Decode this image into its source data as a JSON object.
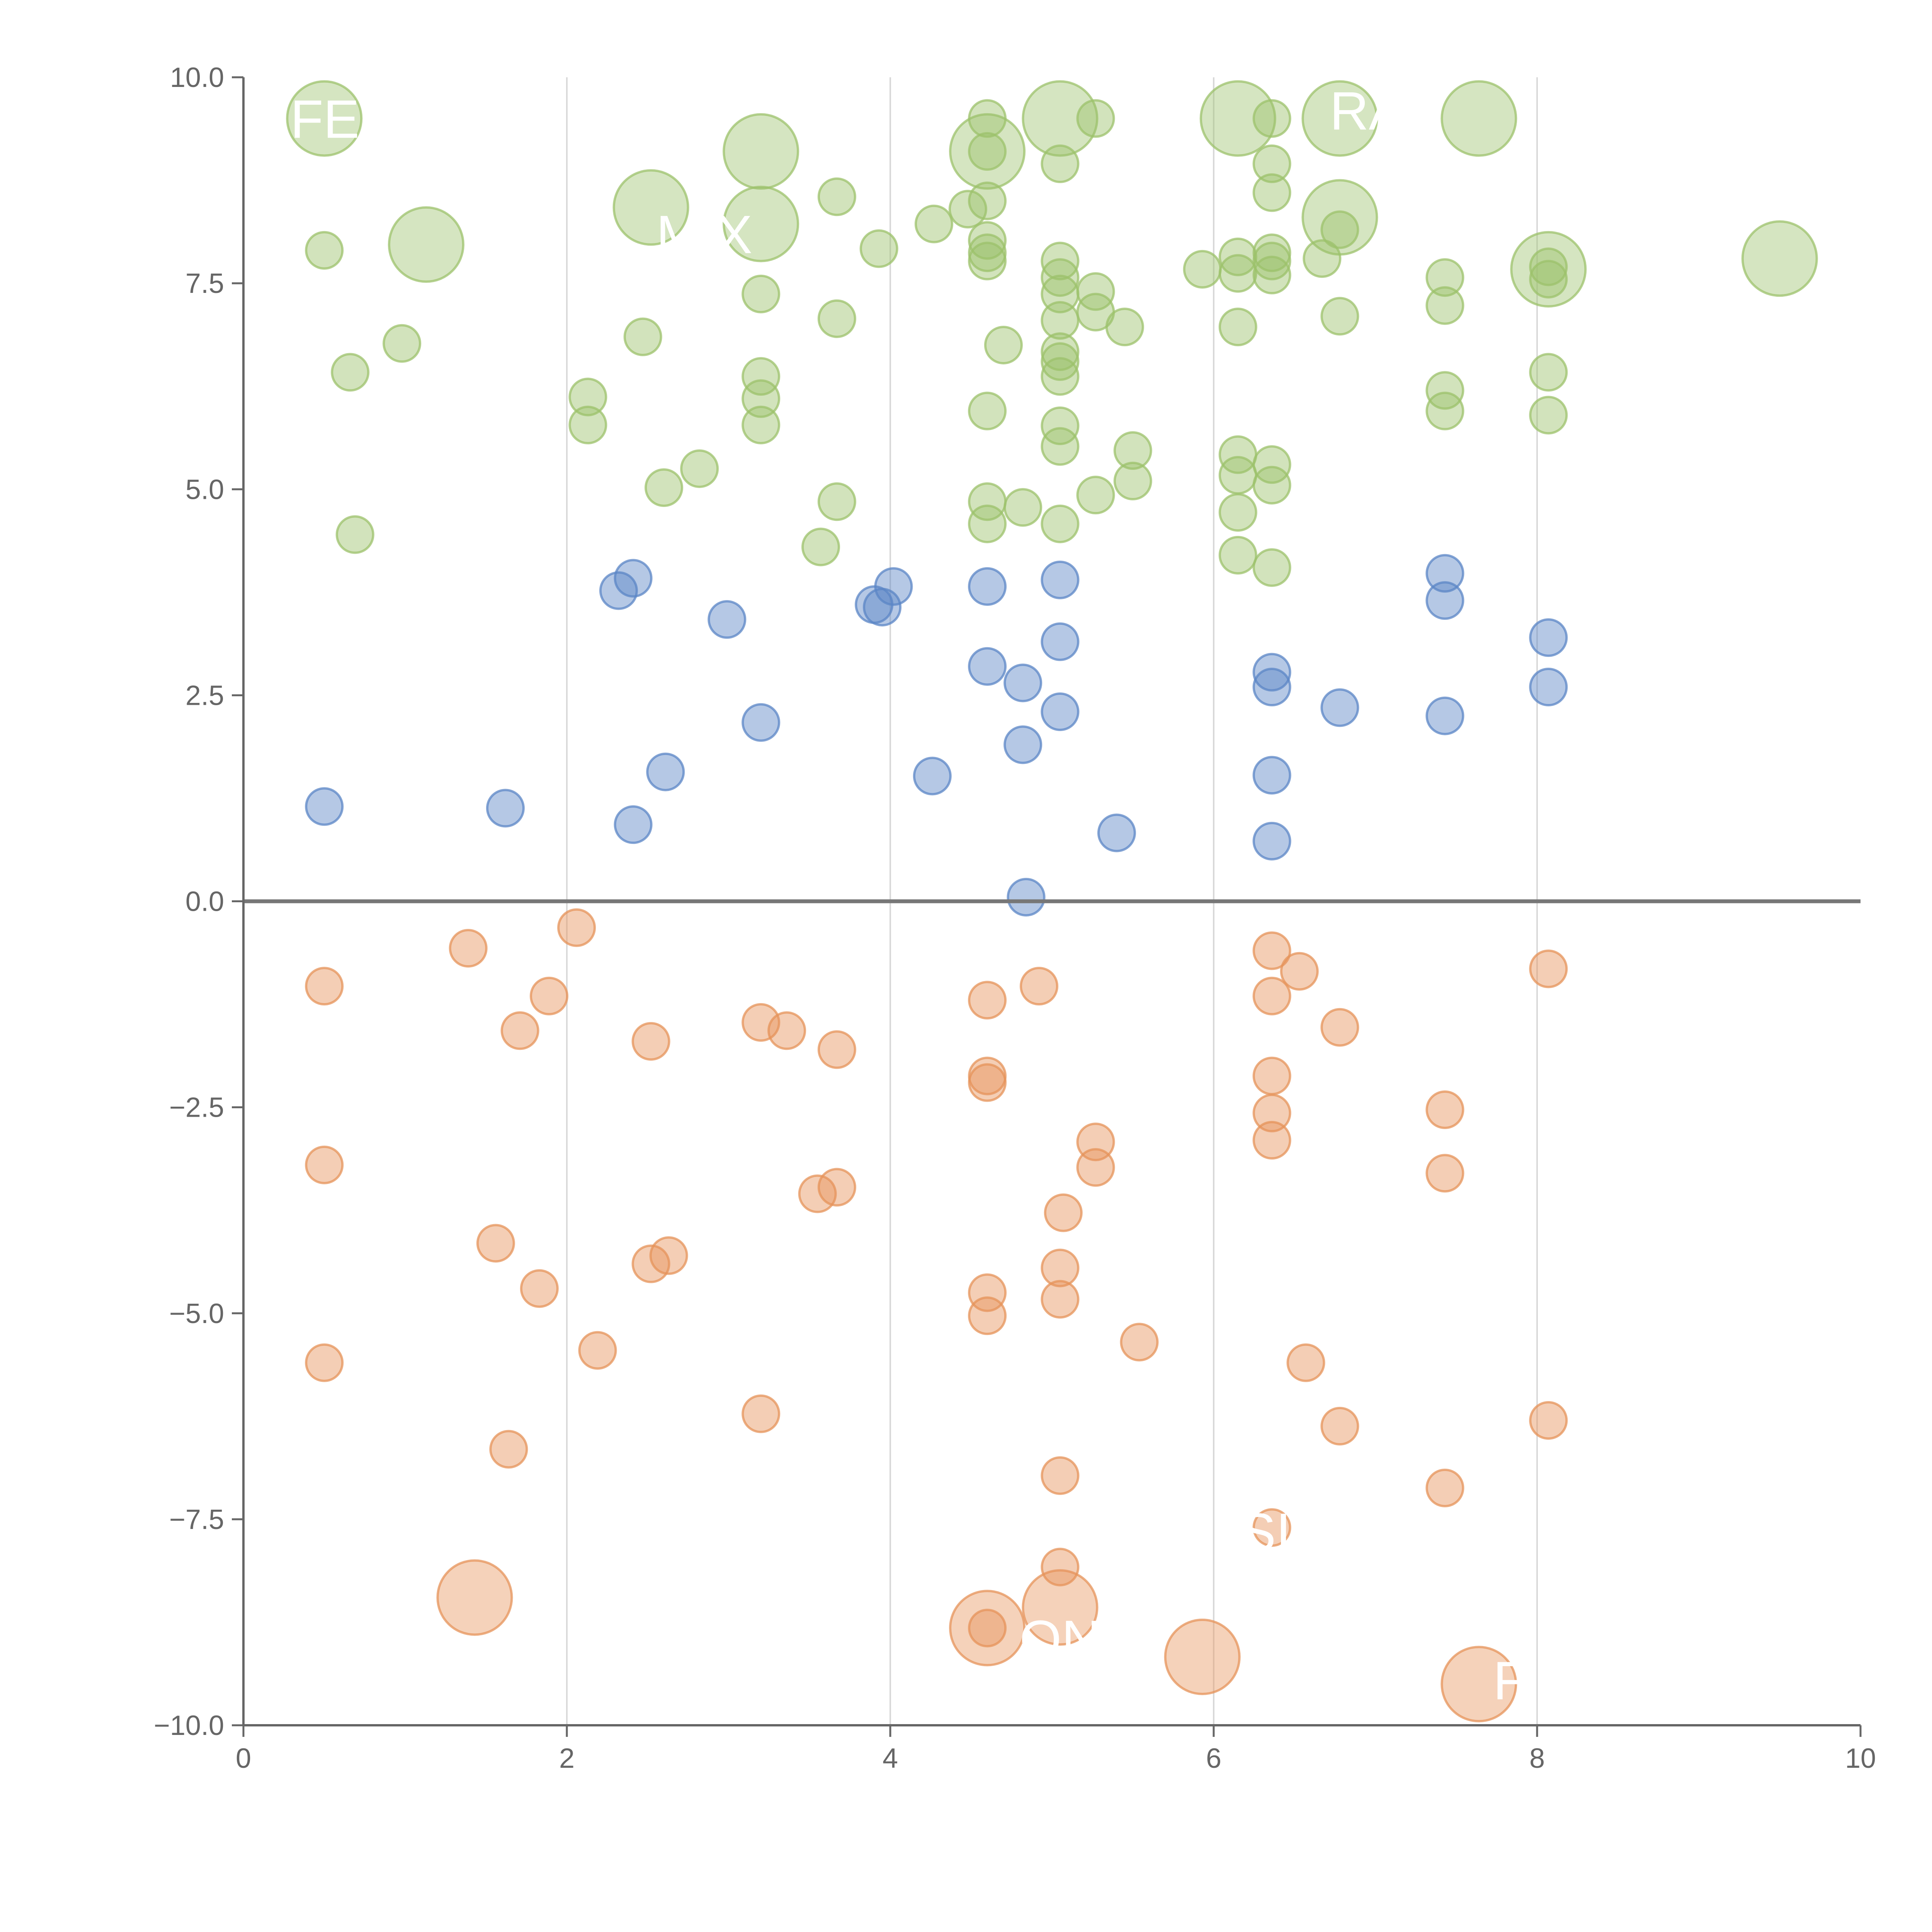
{
  "chart_data": {
    "type": "scatter",
    "title": "",
    "xlabel": "",
    "ylabel": "",
    "xlim": [
      0,
      10
    ],
    "ylim": [
      -10,
      10
    ],
    "grid": "vertical",
    "legend": "none",
    "x_ticks": [
      0,
      2,
      4,
      6,
      8,
      10
    ],
    "x_tick_labels": [
      "0",
      "2",
      "4",
      "6",
      "8",
      "10"
    ],
    "y_ticks": [
      10,
      7.5,
      5,
      2.5,
      0,
      -2.5,
      -5,
      -7.5,
      -10
    ],
    "y_tick_labels": [
      "10.0",
      "7.5",
      "5.0",
      "2.5",
      "0.0",
      "−2.5",
      "−5.0",
      "−7.5",
      "−10.0"
    ],
    "reference_line": {
      "y": 0,
      "color": "#777777"
    },
    "colors": {
      "positive_high": "#9cc26b",
      "positive_low": "#5b86c5",
      "negative": "#e6935a"
    },
    "series": [
      {
        "name": "positive_high",
        "color": "#9cc26b",
        "points": [
          [
            0.5,
            9.5,
            "big"
          ],
          [
            1.13,
            7.97,
            "big"
          ],
          [
            2.52,
            8.42,
            "big"
          ],
          [
            3.2,
            9.1,
            "big"
          ],
          [
            3.2,
            8.22,
            "big"
          ],
          [
            4.6,
            9.1,
            "big"
          ],
          [
            5.05,
            9.5,
            "big"
          ],
          [
            6.15,
            9.5,
            "big"
          ],
          [
            6.78,
            9.5,
            "big"
          ],
          [
            6.78,
            8.3,
            "big"
          ],
          [
            7.64,
            9.5,
            "big"
          ],
          [
            8.07,
            7.67,
            "big"
          ],
          [
            9.5,
            7.8,
            "big"
          ],
          [
            0.5,
            7.9
          ],
          [
            0.66,
            6.42
          ],
          [
            0.98,
            6.77
          ],
          [
            0.69,
            4.45
          ],
          [
            2.13,
            6.12
          ],
          [
            2.13,
            5.78
          ],
          [
            2.47,
            6.85
          ],
          [
            2.6,
            5.02
          ],
          [
            2.82,
            5.25
          ],
          [
            3.2,
            7.37
          ],
          [
            3.2,
            6.37
          ],
          [
            3.2,
            6.1
          ],
          [
            3.2,
            5.78
          ],
          [
            3.57,
            4.3
          ],
          [
            3.67,
            8.55
          ],
          [
            3.67,
            7.07
          ],
          [
            3.67,
            4.85
          ],
          [
            3.93,
            7.92
          ],
          [
            4.27,
            8.22
          ],
          [
            4.48,
            8.4
          ],
          [
            4.6,
            9.5
          ],
          [
            4.6,
            9.1
          ],
          [
            4.6,
            8.5
          ],
          [
            4.6,
            8.02
          ],
          [
            4.6,
            7.87
          ],
          [
            4.6,
            7.77
          ],
          [
            4.6,
            5.95
          ],
          [
            4.6,
            4.85
          ],
          [
            4.6,
            4.58
          ],
          [
            4.7,
            6.75
          ],
          [
            4.82,
            4.78
          ],
          [
            5.05,
            8.95
          ],
          [
            5.05,
            7.77
          ],
          [
            5.05,
            7.57
          ],
          [
            5.05,
            7.37
          ],
          [
            5.05,
            7.05
          ],
          [
            5.05,
            6.67
          ],
          [
            5.05,
            6.55
          ],
          [
            5.05,
            6.37
          ],
          [
            5.05,
            5.77
          ],
          [
            5.05,
            5.52
          ],
          [
            5.05,
            4.58
          ],
          [
            5.27,
            9.5
          ],
          [
            5.27,
            7.4
          ],
          [
            5.27,
            7.15
          ],
          [
            5.27,
            4.93
          ],
          [
            5.45,
            6.97
          ],
          [
            5.5,
            5.47
          ],
          [
            5.5,
            5.1
          ],
          [
            5.93,
            7.67
          ],
          [
            6.15,
            7.82
          ],
          [
            6.15,
            7.62
          ],
          [
            6.15,
            6.97
          ],
          [
            6.15,
            5.42
          ],
          [
            6.15,
            5.17
          ],
          [
            6.15,
            4.72
          ],
          [
            6.15,
            4.2
          ],
          [
            6.36,
            9.5
          ],
          [
            6.36,
            8.95
          ],
          [
            6.36,
            8.6
          ],
          [
            6.36,
            7.87
          ],
          [
            6.36,
            7.77
          ],
          [
            6.36,
            7.6
          ],
          [
            6.36,
            5.3
          ],
          [
            6.36,
            5.05
          ],
          [
            6.36,
            4.05
          ],
          [
            6.67,
            7.8
          ],
          [
            6.78,
            8.15
          ],
          [
            6.78,
            7.1
          ],
          [
            7.43,
            7.57
          ],
          [
            7.43,
            7.23
          ],
          [
            7.43,
            6.2
          ],
          [
            7.43,
            5.95
          ],
          [
            8.07,
            7.7
          ],
          [
            8.07,
            7.55
          ],
          [
            8.07,
            6.42
          ],
          [
            8.07,
            5.9
          ]
        ]
      },
      {
        "name": "positive_low",
        "color": "#5b86c5",
        "points": [
          [
            0.5,
            1.15
          ],
          [
            1.62,
            1.13
          ],
          [
            2.32,
            3.77
          ],
          [
            2.41,
            3.92
          ],
          [
            2.41,
            0.93
          ],
          [
            2.61,
            1.57
          ],
          [
            2.99,
            3.42
          ],
          [
            3.2,
            2.17
          ],
          [
            3.9,
            3.6
          ],
          [
            3.95,
            3.57
          ],
          [
            4.02,
            3.82
          ],
          [
            4.26,
            1.52
          ],
          [
            4.6,
            3.82
          ],
          [
            4.6,
            2.85
          ],
          [
            4.82,
            2.65
          ],
          [
            4.82,
            1.9
          ],
          [
            4.84,
            0.05
          ],
          [
            5.05,
            3.9
          ],
          [
            5.05,
            3.15
          ],
          [
            5.05,
            2.3
          ],
          [
            5.4,
            0.83
          ],
          [
            6.36,
            2.78
          ],
          [
            6.36,
            2.6
          ],
          [
            6.36,
            1.53
          ],
          [
            6.36,
            0.73
          ],
          [
            6.78,
            2.35
          ],
          [
            7.43,
            3.98
          ],
          [
            7.43,
            3.65
          ],
          [
            7.43,
            2.25
          ],
          [
            8.07,
            3.2
          ],
          [
            8.07,
            2.6
          ]
        ]
      },
      {
        "name": "negative",
        "color": "#e6935a",
        "points": [
          [
            1.43,
            -8.45,
            "big"
          ],
          [
            4.6,
            -8.82,
            "big"
          ],
          [
            5.05,
            -8.57,
            "big"
          ],
          [
            5.93,
            -9.17,
            "big"
          ],
          [
            7.64,
            -9.5,
            "big"
          ],
          [
            0.5,
            -1.03
          ],
          [
            0.5,
            -3.2
          ],
          [
            0.5,
            -5.6
          ],
          [
            1.39,
            -0.57
          ],
          [
            1.56,
            -4.15
          ],
          [
            1.64,
            -6.65
          ],
          [
            1.71,
            -1.57
          ],
          [
            1.83,
            -4.7
          ],
          [
            1.89,
            -1.15
          ],
          [
            2.06,
            -0.32
          ],
          [
            2.19,
            -5.45
          ],
          [
            2.52,
            -1.7
          ],
          [
            2.52,
            -4.4
          ],
          [
            2.63,
            -4.3
          ],
          [
            3.2,
            -1.47
          ],
          [
            3.2,
            -6.22
          ],
          [
            3.36,
            -1.57
          ],
          [
            3.55,
            -3.55
          ],
          [
            3.67,
            -1.8
          ],
          [
            3.67,
            -3.47
          ],
          [
            4.6,
            -1.2
          ],
          [
            4.6,
            -2.12
          ],
          [
            4.6,
            -2.2
          ],
          [
            4.6,
            -4.75
          ],
          [
            4.6,
            -5.03
          ],
          [
            4.6,
            -8.82
          ],
          [
            4.92,
            -1.03
          ],
          [
            5.05,
            -4.45
          ],
          [
            5.05,
            -4.83
          ],
          [
            5.05,
            -6.97
          ],
          [
            5.05,
            -8.08
          ],
          [
            5.07,
            -3.78
          ],
          [
            5.27,
            -2.92
          ],
          [
            5.27,
            -3.23
          ],
          [
            5.54,
            -5.35
          ],
          [
            6.36,
            -0.6
          ],
          [
            6.36,
            -1.15
          ],
          [
            6.36,
            -2.12
          ],
          [
            6.36,
            -2.57
          ],
          [
            6.36,
            -2.9
          ],
          [
            6.36,
            -7.6
          ],
          [
            6.53,
            -0.85
          ],
          [
            6.57,
            -5.6
          ],
          [
            6.78,
            -1.53
          ],
          [
            6.78,
            -6.37
          ],
          [
            7.43,
            -2.53
          ],
          [
            7.43,
            -3.3
          ],
          [
            7.43,
            -7.12
          ],
          [
            8.07,
            -0.82
          ],
          [
            8.07,
            -6.3
          ]
        ]
      }
    ],
    "annotations": [
      {
        "text": "FEI",
        "x": 0.55,
        "y": 9.5
      },
      {
        "text": "MIX",
        "x": 2.85,
        "y": 8.1
      },
      {
        "text": "RA",
        "x": 6.95,
        "y": 9.6
      },
      {
        "text": "SI",
        "x": 6.32,
        "y": -7.65
      },
      {
        "text": "ON",
        "x": 5.05,
        "y": -8.95
      },
      {
        "text": "F",
        "x": 7.83,
        "y": -9.45
      }
    ]
  }
}
